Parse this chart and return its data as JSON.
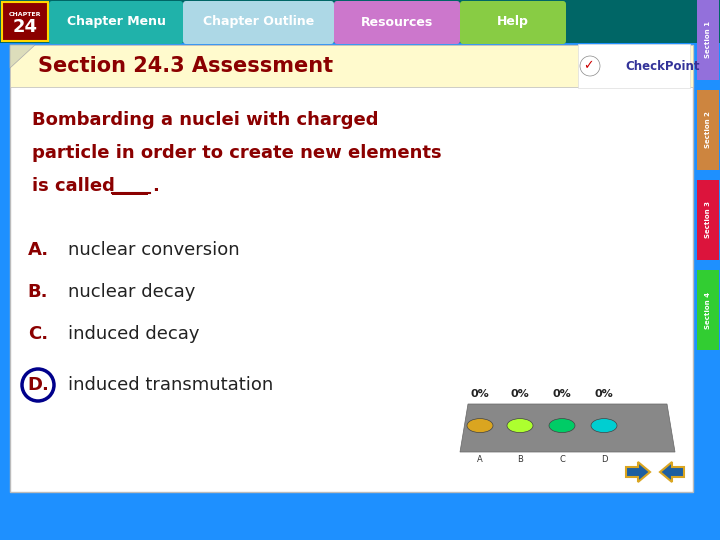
{
  "title": "Section 24.3 Assessment",
  "title_color": "#8B0000",
  "title_bg_color": "#FFFACD",
  "main_bg_color": "#FFFFFF",
  "outer_bg_color": "#1E90FF",
  "question_text_lines": [
    "Bombarding a nuclei with charged",
    "particle in order to create new elements",
    "is called ____."
  ],
  "question_color": "#8B0000",
  "options": [
    {
      "label": "A.",
      "text": "nuclear conversion",
      "label_color": "#8B0000",
      "circle": false
    },
    {
      "label": "B.",
      "text": "nuclear decay",
      "label_color": "#8B0000",
      "circle": false
    },
    {
      "label": "C.",
      "text": "induced decay",
      "label_color": "#8B0000",
      "circle": false
    },
    {
      "label": "D.",
      "text": "induced transmutation",
      "label_color": "#8B0000",
      "circle": true
    }
  ],
  "answer_circle_color": "#00008B",
  "chapter_num": "24",
  "chapter_label": "CHAPTER",
  "top_bar_bg": "#006666",
  "top_buttons": [
    "Chapter Menu",
    "Chapter Outline",
    "Resources",
    "Help"
  ],
  "top_btn_colors": [
    "#20B2AA",
    "#ADD8E6",
    "#DA70D6",
    "#90EE90"
  ],
  "top_btn_text_colors": [
    "#FFFFFF",
    "#FFFFFF",
    "#FFFFFF",
    "#FFFFFF"
  ],
  "side_labels": [
    "Section 1",
    "Section 2",
    "Section 3",
    "Section 4"
  ],
  "side_colors": [
    "#9370DB",
    "#CD853F",
    "#DC143C",
    "#32CD32"
  ],
  "poll_percentages": [
    "0%",
    "0%",
    "0%",
    "0%"
  ],
  "poll_colors": [
    "#DAA520",
    "#ADFF2F",
    "#00CC66",
    "#00CED1"
  ],
  "checkpoint_color": "#333399"
}
